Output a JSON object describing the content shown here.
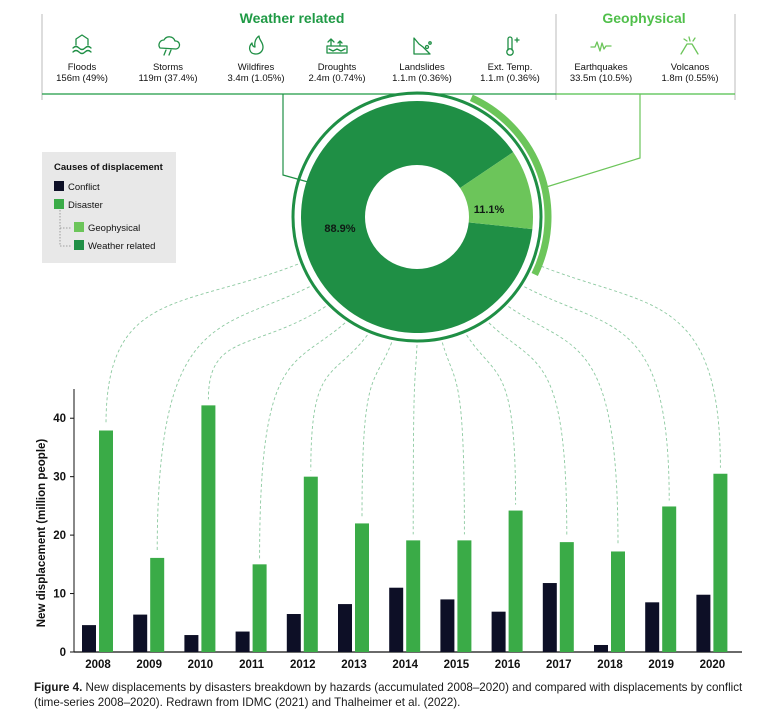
{
  "header": {
    "weather_title": "Weather related",
    "geo_title": "Geophysical",
    "weather_hazards": [
      {
        "icon": "flood-icon",
        "name": "Floods",
        "value": "156m (49%)"
      },
      {
        "icon": "storm-icon",
        "name": "Storms",
        "value": "119m (37.4%)"
      },
      {
        "icon": "wildfire-icon",
        "name": "Wildfires",
        "value": "3.4m (1.05%)"
      },
      {
        "icon": "drought-icon",
        "name": "Droughts",
        "value": "2.4m (0.74%)"
      },
      {
        "icon": "landslide-icon",
        "name": "Landslides",
        "value": "1.1.m (0.36%)"
      },
      {
        "icon": "thermometer-icon",
        "name": "Ext. Temp.",
        "value": "1.1.m (0.36%)"
      }
    ],
    "geo_hazards": [
      {
        "icon": "earthquake-icon",
        "name": "Earthquakes",
        "value": "33.5m (10.5%)"
      },
      {
        "icon": "volcano-icon",
        "name": "Volcanos",
        "value": "1.8m (0.55%)"
      }
    ]
  },
  "legend": {
    "title": "Causes of displacement",
    "items": [
      {
        "label": "Conflict",
        "color": "#0d0f26"
      },
      {
        "label": "Disaster",
        "color": "#3aab47"
      },
      {
        "label": "Geophysical",
        "color": "#6cc55a"
      },
      {
        "label": "Weather related",
        "color": "#1f8f45"
      }
    ]
  },
  "colors": {
    "conflict": "#0d0f26",
    "disaster": "#3aab47",
    "geophysical": "#6cc55a",
    "weather": "#1f8f45",
    "title_green": "#1f9a45",
    "geo_title_green": "#4fbf4a"
  },
  "chart_data": [
    {
      "type": "pie",
      "labels": [
        "88.9%",
        "11.1%"
      ],
      "values": [
        88.9,
        11.1
      ],
      "slice_names": [
        "Weather related",
        "Geophysical"
      ]
    },
    {
      "type": "bar",
      "categories": [
        "2008",
        "2009",
        "2010",
        "2011",
        "2012",
        "2013",
        "2014",
        "2015",
        "2016",
        "2017",
        "2018",
        "2019",
        "2020"
      ],
      "series": [
        {
          "name": "Conflict",
          "values": [
            4.6,
            6.4,
            2.9,
            3.5,
            6.5,
            8.2,
            11.0,
            9.0,
            6.9,
            11.8,
            1.2,
            8.5,
            9.8
          ]
        },
        {
          "name": "Disaster",
          "values": [
            37.9,
            16.1,
            42.2,
            15.0,
            30.0,
            22.0,
            19.1,
            19.1,
            24.2,
            18.8,
            17.2,
            24.9,
            30.5
          ]
        }
      ],
      "ylabel": "New displacement (million people)",
      "ylim": [
        0,
        45
      ],
      "yticks": [
        0,
        10,
        20,
        30,
        40
      ]
    }
  ],
  "caption": {
    "label": "Figure 4.",
    "text": " New displacements by disasters breakdown by hazards (accumulated 2008–2020) and compared with displacements by conflict (time-series 2008–2020). Redrawn from IDMC (2021) and Thalheimer et al. (2022)."
  }
}
